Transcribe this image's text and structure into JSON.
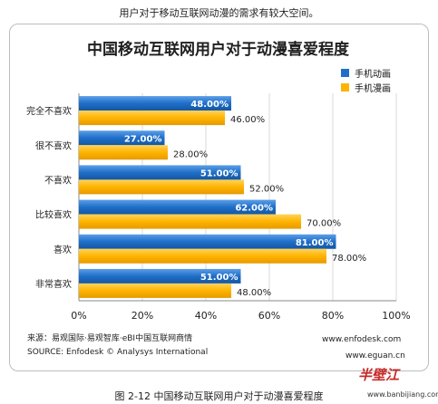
{
  "top_caption": "用户对于移动互联网动漫的需求有较大空间。",
  "legend_labels": [
    "手机动画",
    "手机漫画"
  ],
  "source_cn": "来源：易观国际·易观智库·eBI中国互联网商情",
  "source_en": "SOURCE: Enfodesk © Analysys International",
  "url_enfodesk": "www.enfodesk.com",
  "url_eguan": "www.eguan.cn",
  "bottom_caption": "图 2-12  中国移动互联网用户对于动漫喜爱程度",
  "logo_text": "半壁江",
  "logo_url": "www.banbijiang.com",
  "colors": {
    "series1": "#1f6fc9",
    "series2": "#ffb300"
  },
  "chart_data": {
    "type": "bar",
    "orientation": "horizontal",
    "title": "中国移动互联网用户对于动漫喜爱程度",
    "categories": [
      "完全不喜欢",
      "很不喜欢",
      "不喜欢",
      "比较喜欢",
      "喜欢",
      "非常喜欢"
    ],
    "series": [
      {
        "name": "手机动画",
        "values": [
          48,
          27,
          51,
          62,
          81,
          51
        ],
        "labels": [
          "48.00%",
          "27.00%",
          "51.00%",
          "62.00%",
          "81.00%",
          "51.00%"
        ]
      },
      {
        "name": "手机漫画",
        "values": [
          46,
          28,
          52,
          70,
          78,
          48
        ],
        "labels": [
          "46.00%",
          "28.00%",
          "52.00%",
          "70.00%",
          "78.00%",
          "48.00%"
        ]
      }
    ],
    "xlim": [
      0,
      100
    ],
    "xticks": [
      "0%",
      "20%",
      "40%",
      "60%",
      "80%",
      "100%"
    ],
    "xlabel": "",
    "ylabel": "",
    "legend": "top-right",
    "grid": true
  }
}
